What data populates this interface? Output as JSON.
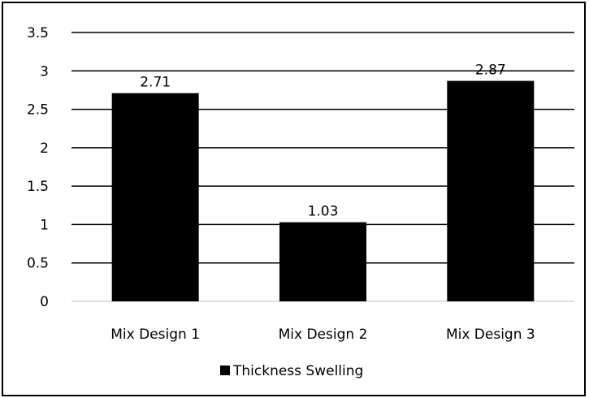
{
  "chart_data": {
    "type": "bar",
    "categories": [
      "Mix Design 1",
      "Mix Design 2",
      "Mix Design 3"
    ],
    "series": [
      {
        "name": "Thickness Swelling",
        "values": [
          2.71,
          1.03,
          2.87
        ],
        "color": "#000000"
      }
    ],
    "data_labels": [
      "2.71",
      "1.03",
      "2.87"
    ],
    "y_ticks": [
      "0",
      "0.5",
      "1",
      "1.5",
      "2",
      "2.5",
      "3",
      "3.5"
    ],
    "ylim": [
      0,
      3.5
    ],
    "grid": true,
    "legend_position": "bottom",
    "title": "",
    "xlabel": "",
    "ylabel": ""
  }
}
